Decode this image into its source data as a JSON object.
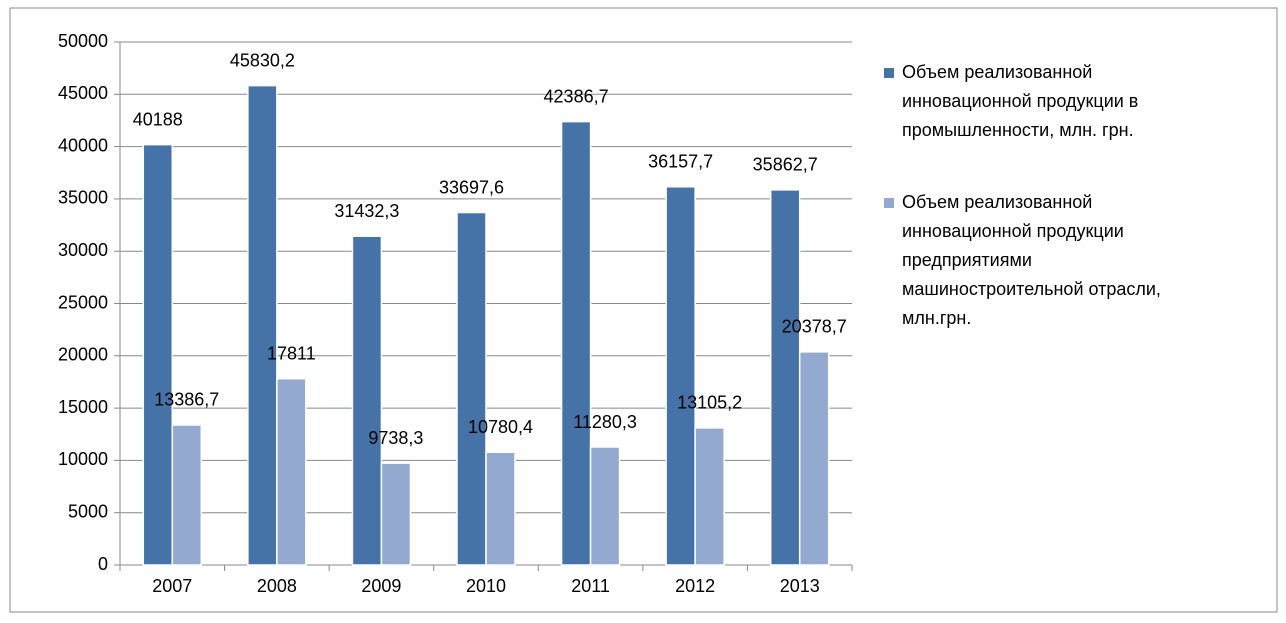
{
  "chart_data": {
    "type": "bar",
    "categories": [
      "2007",
      "2008",
      "2009",
      "2010",
      "2011",
      "2012",
      "2013"
    ],
    "series": [
      {
        "name": "Объем реализованной инновационной продукции в промышленности, млн. грн.",
        "color": "#4572a7",
        "values": [
          40188,
          45830.2,
          31432.3,
          33697.6,
          42386.7,
          36157.7,
          35862.7
        ],
        "value_labels": [
          "40188",
          "45830,2",
          "31432,3",
          "33697,6",
          "42386,7",
          "36157,7",
          "35862,7"
        ]
      },
      {
        "name": "Объем реализованной инновационной продукции предприятиями машиностроительной отрасли, млн.грн.",
        "color": "#93a9cf",
        "values": [
          13386.7,
          17811,
          9738.3,
          10780.4,
          11280.3,
          13105.2,
          20378.7
        ],
        "value_labels": [
          "13386,7",
          "17811",
          "9738,3",
          "10780,4",
          "11280,3",
          "13105,2",
          "20378,7"
        ]
      }
    ],
    "ylim": [
      0,
      50000
    ],
    "yticks": [
      0,
      5000,
      10000,
      15000,
      20000,
      25000,
      30000,
      35000,
      40000,
      45000,
      50000
    ],
    "grid": true,
    "legend": "right"
  }
}
